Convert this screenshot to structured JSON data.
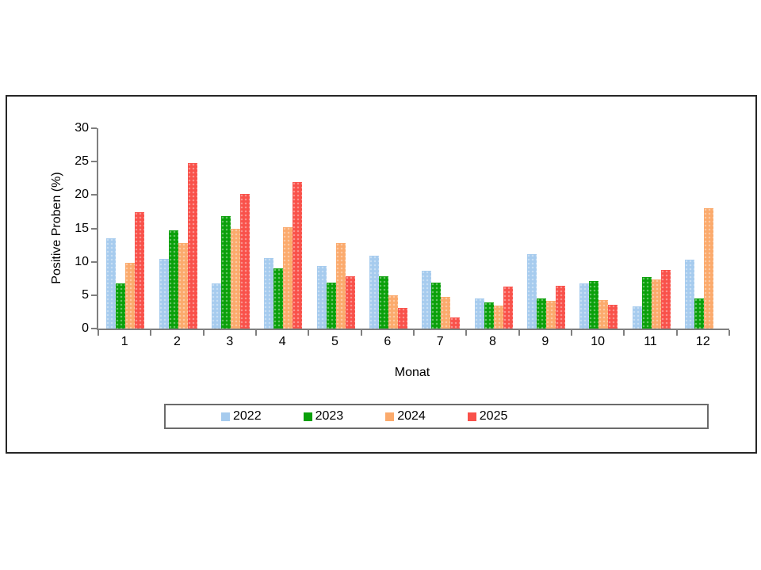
{
  "chart_data": {
    "type": "bar",
    "title": "",
    "xlabel": "Monat",
    "ylabel": "Positive Proben (%)",
    "categories": [
      "1",
      "2",
      "3",
      "4",
      "5",
      "6",
      "7",
      "8",
      "9",
      "10",
      "11",
      "12"
    ],
    "series": [
      {
        "name": "2022",
        "color": "#A6CBEE",
        "values": [
          13.5,
          10.4,
          6.8,
          10.6,
          9.4,
          10.9,
          8.6,
          4.5,
          11.1,
          6.8,
          3.3,
          10.3
        ]
      },
      {
        "name": "2023",
        "color": "#0AA00A",
        "values": [
          6.8,
          14.7,
          16.8,
          9.0,
          6.9,
          7.8,
          6.9,
          3.9,
          4.5,
          7.1,
          7.7,
          4.5
        ]
      },
      {
        "name": "2024",
        "color": "#FBAA6C",
        "values": [
          9.8,
          12.8,
          15.0,
          15.2,
          12.8,
          5.0,
          4.8,
          3.4,
          4.1,
          4.3,
          7.4,
          18.0
        ]
      },
      {
        "name": "2025",
        "color": "#F9514A",
        "values": [
          17.4,
          24.8,
          20.2,
          21.9,
          7.8,
          3.1,
          1.7,
          6.3,
          6.4,
          3.6,
          8.8,
          null
        ]
      }
    ],
    "ylim": [
      0,
      30
    ],
    "ytick_step": 5,
    "grid": false,
    "legend_position": "bottom"
  }
}
